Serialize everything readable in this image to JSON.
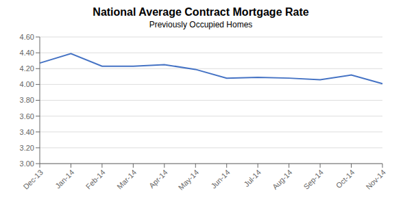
{
  "chart_data": {
    "type": "line",
    "title": "National Average Contract Mortgage Rate",
    "subtitle": "Previously Occupied Homes",
    "categories": [
      "Dec-13",
      "Jan-14",
      "Feb-14",
      "Mar-14",
      "Apr-14",
      "May-14",
      "Jun-14",
      "Jul-14",
      "Aug-14",
      "Sep-14",
      "Oct-14",
      "Nov-14"
    ],
    "values": [
      4.27,
      4.39,
      4.23,
      4.23,
      4.25,
      4.19,
      4.08,
      4.09,
      4.08,
      4.06,
      4.12,
      4.01
    ],
    "color": "#4472C4",
    "ylim": [
      3.0,
      4.6
    ],
    "yticks": [
      {
        "value": 3.0,
        "label": "3.00"
      },
      {
        "value": 3.2,
        "label": "3.20"
      },
      {
        "value": 3.4,
        "label": "3.40"
      },
      {
        "value": 3.6,
        "label": "3.60"
      },
      {
        "value": 3.8,
        "label": "3.80"
      },
      {
        "value": 4.0,
        "label": "4.00"
      },
      {
        "value": 4.2,
        "label": "4.20"
      },
      {
        "value": 4.4,
        "label": "4.40"
      },
      {
        "value": 4.6,
        "label": "4.60"
      }
    ],
    "grid": true
  }
}
